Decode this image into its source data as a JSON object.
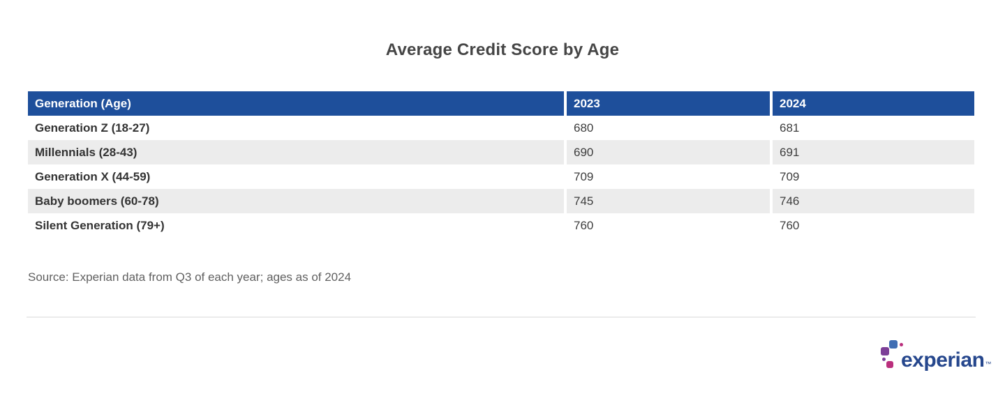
{
  "title": "Average Credit Score by Age",
  "chart_data": {
    "type": "table",
    "title": "Average Credit Score by Age",
    "columns": [
      "Generation (Age)",
      "2023",
      "2024"
    ],
    "rows": [
      [
        "Generation Z (18-27)",
        680,
        681
      ],
      [
        "Millennials (28-43)",
        690,
        691
      ],
      [
        "Generation X (44-59)",
        709,
        709
      ],
      [
        "Baby boomers (60-78)",
        745,
        746
      ],
      [
        "Silent Generation (79+)",
        760,
        760
      ]
    ],
    "layout_hints": {
      "header_style": "solid blue bar with white bold text",
      "zebra_striping": "odd data rows white, even data rows light gray",
      "column_separators": "thin white vertical gaps between columns"
    }
  },
  "source_note": "Source: Experian data from Q3 of each year; ages as of 2024",
  "logo": {
    "wordmark": "experian",
    "trademark": "™"
  },
  "colors": {
    "header_bg": "#1e4f9b",
    "header_text": "#ffffff",
    "row_alt_bg": "#ececec",
    "title_text": "#454545",
    "label_text": "#333333",
    "value_text": "#3d3d3d",
    "source_text": "#606060",
    "divider": "#ebebeb",
    "logo_dark_blue": "#26478d",
    "logo_light_blue": "#406eb3",
    "logo_purple": "#7d3f98",
    "logo_magenta": "#ba2f7d"
  }
}
